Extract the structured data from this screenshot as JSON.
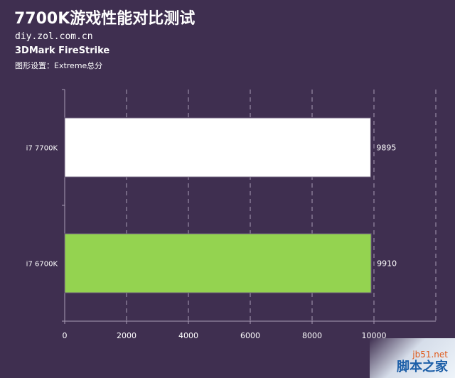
{
  "header": {
    "title": "7700K游戏性能对比测试",
    "site": "diy.zol.com.cn",
    "subtitle": "3DMark FireStrike",
    "note": "图形设置：Extreme总分"
  },
  "watermark": {
    "top": "jb51.net",
    "bottom": "脚本之家"
  },
  "chart_data": {
    "type": "bar",
    "orientation": "horizontal",
    "categories": [
      "i7 7700K",
      "i7 6700K"
    ],
    "values": [
      9895,
      9910
    ],
    "bar_colors": [
      "#ffffff",
      "#94d350"
    ],
    "xlim": [
      0,
      12000
    ],
    "x_ticks": [
      0,
      2000,
      4000,
      6000,
      8000,
      10000
    ],
    "grid": "vertical dashed",
    "title": "7700K游戏性能对比测试"
  }
}
